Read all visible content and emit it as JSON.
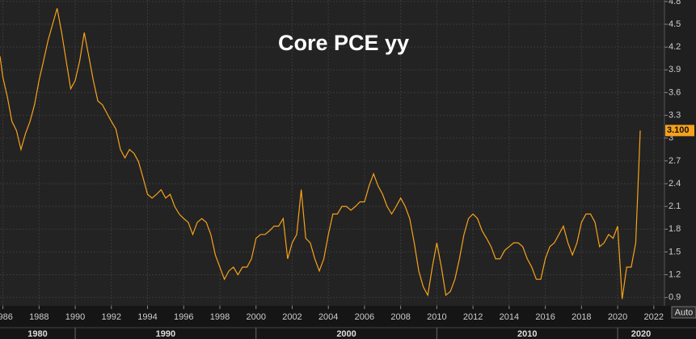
{
  "chart_data": {
    "type": "line",
    "title": "Core PCE yy",
    "color": "#f7a21b",
    "grid": true,
    "x": [
      1985.84,
      1986,
      1986.25,
      1986.5,
      1986.75,
      1987,
      1987.25,
      1987.5,
      1987.75,
      1988,
      1988.25,
      1988.5,
      1988.75,
      1989,
      1989.25,
      1989.5,
      1989.75,
      1990,
      1990.25,
      1990.5,
      1990.75,
      1991,
      1991.25,
      1991.5,
      1991.75,
      1992,
      1992.25,
      1992.5,
      1992.75,
      1993,
      1993.25,
      1993.5,
      1993.75,
      1994,
      1994.25,
      1994.5,
      1994.75,
      1995,
      1995.25,
      1995.5,
      1995.75,
      1996,
      1996.25,
      1996.5,
      1996.75,
      1997,
      1997.25,
      1997.5,
      1997.75,
      1998,
      1998.25,
      1998.5,
      1998.75,
      1999,
      1999.25,
      1999.5,
      1999.75,
      2000,
      2000.25,
      2000.5,
      2000.75,
      2001,
      2001.25,
      2001.5,
      2001.75,
      2002,
      2002.25,
      2002.5,
      2002.75,
      2003,
      2003.25,
      2003.5,
      2003.75,
      2004,
      2004.25,
      2004.5,
      2004.75,
      2005,
      2005.25,
      2005.5,
      2005.75,
      2006,
      2006.25,
      2006.5,
      2006.75,
      2007,
      2007.25,
      2007.5,
      2007.75,
      2008,
      2008.25,
      2008.5,
      2008.75,
      2009,
      2009.25,
      2009.5,
      2009.75,
      2010,
      2010.25,
      2010.5,
      2010.75,
      2011,
      2011.25,
      2011.5,
      2011.75,
      2012,
      2012.25,
      2012.5,
      2012.75,
      2013,
      2013.25,
      2013.5,
      2013.75,
      2014,
      2014.25,
      2014.5,
      2014.75,
      2015,
      2015.25,
      2015.5,
      2015.75,
      2016,
      2016.25,
      2016.5,
      2016.75,
      2017,
      2017.25,
      2017.5,
      2017.75,
      2018,
      2018.25,
      2018.5,
      2018.75,
      2019,
      2019.25,
      2019.5,
      2019.75,
      2020,
      2020.25,
      2020.5,
      2020.75,
      2021,
      2021.25
    ],
    "values": [
      4.08,
      3.8,
      3.54,
      3.22,
      3.1,
      2.85,
      3.06,
      3.22,
      3.44,
      3.76,
      4.02,
      4.29,
      4.5,
      4.71,
      4.39,
      4.02,
      3.65,
      3.76,
      4.02,
      4.39,
      4.08,
      3.76,
      3.49,
      3.44,
      3.33,
      3.22,
      3.12,
      2.85,
      2.74,
      2.85,
      2.8,
      2.69,
      2.48,
      2.26,
      2.21,
      2.26,
      2.32,
      2.21,
      2.26,
      2.1,
      2.0,
      1.94,
      1.89,
      1.73,
      1.89,
      1.94,
      1.89,
      1.73,
      1.46,
      1.3,
      1.14,
      1.25,
      1.3,
      1.2,
      1.3,
      1.3,
      1.41,
      1.68,
      1.73,
      1.73,
      1.78,
      1.84,
      1.84,
      1.94,
      1.41,
      1.62,
      1.73,
      2.32,
      1.68,
      1.62,
      1.41,
      1.25,
      1.41,
      1.73,
      2.0,
      2.0,
      2.1,
      2.1,
      2.05,
      2.1,
      2.16,
      2.16,
      2.37,
      2.53,
      2.37,
      2.26,
      2.1,
      2.0,
      2.1,
      2.21,
      2.1,
      1.94,
      1.62,
      1.25,
      1.04,
      0.93,
      1.3,
      1.62,
      1.3,
      0.93,
      0.98,
      1.14,
      1.41,
      1.73,
      1.94,
      2.0,
      1.94,
      1.78,
      1.68,
      1.57,
      1.41,
      1.41,
      1.52,
      1.57,
      1.62,
      1.62,
      1.57,
      1.41,
      1.3,
      1.14,
      1.14,
      1.41,
      1.57,
      1.62,
      1.73,
      1.84,
      1.62,
      1.46,
      1.62,
      1.89,
      2.0,
      2.0,
      1.89,
      1.57,
      1.62,
      1.73,
      1.68,
      1.84,
      0.88,
      1.3,
      1.3,
      1.62,
      3.1
    ],
    "last_value_label": "3.100",
    "xlim": [
      1985.84,
      2022.59
    ],
    "ylim": [
      0.79,
      4.82
    ],
    "xticks": [
      1986,
      1988,
      1990,
      1992,
      1994,
      1996,
      1998,
      2000,
      2002,
      2004,
      2006,
      2008,
      2010,
      2012,
      2014,
      2016,
      2018,
      2020,
      2022
    ],
    "x_major": [
      1980,
      1990,
      2000,
      2010,
      2020
    ],
    "yticks": [
      0.9,
      1.2,
      1.5,
      1.8,
      2.1,
      2.4,
      2.7,
      3,
      3.3,
      3.6,
      3.9,
      4.2,
      4.5,
      4.8
    ]
  },
  "controls": {
    "auto": "Auto"
  }
}
